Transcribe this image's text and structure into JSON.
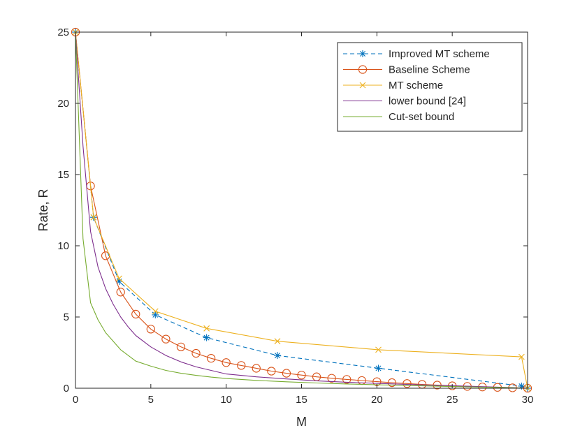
{
  "chart_data": {
    "type": "line",
    "title": "",
    "xlabel": "M",
    "ylabel": "Rate, R",
    "xlim": [
      0,
      30
    ],
    "ylim": [
      0,
      25
    ],
    "xticks": [
      0,
      5,
      10,
      15,
      20,
      25,
      30
    ],
    "yticks": [
      0,
      5,
      10,
      15,
      20,
      25
    ],
    "grid": false,
    "legend_position": "top-right",
    "series": [
      {
        "name": "Improved MT scheme",
        "color": "#0072BD",
        "line_style": "dashed",
        "marker": "asterisk",
        "x": [
          0,
          1.2,
          2.9,
          5.3,
          8.7,
          13.4,
          20.1,
          29.6,
          30
        ],
        "y": [
          25,
          12,
          7.5,
          5.15,
          3.55,
          2.3,
          1.4,
          0.15,
          0
        ]
      },
      {
        "name": "Baseline Scheme",
        "color": "#D95319",
        "line_style": "solid",
        "marker": "circle",
        "x": [
          0,
          1,
          2,
          3,
          4,
          5,
          6,
          7,
          8,
          9,
          10,
          11,
          12,
          13,
          14,
          15,
          16,
          17,
          18,
          19,
          20,
          21,
          22,
          23,
          24,
          25,
          26,
          27,
          28,
          29,
          30
        ],
        "y": [
          25,
          14.2,
          9.3,
          6.75,
          5.2,
          4.15,
          3.45,
          2.9,
          2.45,
          2.1,
          1.8,
          1.6,
          1.4,
          1.2,
          1.05,
          0.92,
          0.8,
          0.7,
          0.62,
          0.54,
          0.46,
          0.39,
          0.33,
          0.27,
          0.22,
          0.17,
          0.13,
          0.09,
          0.06,
          0.03,
          0
        ]
      },
      {
        "name": "MT scheme",
        "color": "#EDB120",
        "line_style": "solid",
        "marker": "x",
        "x": [
          0,
          1.2,
          2.9,
          5.3,
          8.7,
          13.4,
          20.1,
          29.6,
          30
        ],
        "y": [
          25,
          12,
          7.7,
          5.4,
          4.2,
          3.3,
          2.7,
          2.2,
          0
        ]
      },
      {
        "name": "lower bound [24]",
        "color": "#7E2F8E",
        "line_style": "solid",
        "marker": "none",
        "x": [
          0,
          0.5,
          1,
          1.5,
          2,
          2.5,
          3,
          3.5,
          4,
          5,
          6,
          7,
          8,
          9,
          10,
          12,
          14,
          16,
          18,
          20,
          22,
          24,
          26,
          28,
          29,
          30
        ],
        "y": [
          25,
          17,
          11,
          8.5,
          7,
          5.9,
          5.0,
          4.3,
          3.7,
          2.9,
          2.3,
          1.85,
          1.5,
          1.25,
          1.0,
          0.8,
          0.65,
          0.52,
          0.42,
          0.34,
          0.27,
          0.2,
          0.14,
          0.08,
          0.04,
          0
        ]
      },
      {
        "name": "Cut-set bound",
        "color": "#77AC30",
        "line_style": "solid",
        "marker": "none",
        "x": [
          0,
          0.5,
          1,
          1.5,
          2,
          3,
          4,
          5,
          6,
          7,
          8,
          9,
          10,
          12,
          14,
          16,
          18,
          20,
          22,
          24,
          26,
          28,
          29,
          30
        ],
        "y": [
          25,
          10.5,
          6,
          4.8,
          3.9,
          2.7,
          1.9,
          1.55,
          1.25,
          1.05,
          0.9,
          0.78,
          0.68,
          0.55,
          0.45,
          0.37,
          0.3,
          0.24,
          0.19,
          0.14,
          0.1,
          0.06,
          0.03,
          0
        ]
      }
    ]
  }
}
